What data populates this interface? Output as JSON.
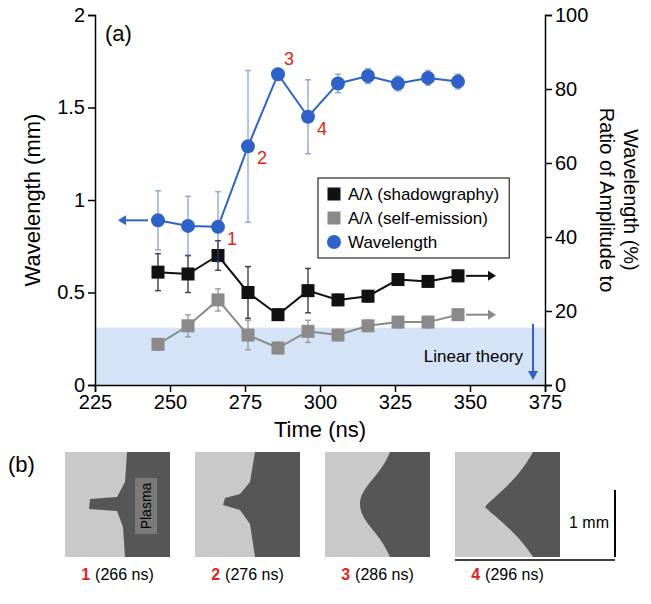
{
  "chart_data": {
    "type": "line",
    "panel_label": "(a)",
    "xlabel": "Time (ns)",
    "ylabel": "Wavelength (mm)",
    "y2label": "Ratio of Amplitude to Wavelength (%)",
    "x": [
      246,
      256,
      266,
      276,
      286,
      296,
      306,
      316,
      326,
      336,
      346
    ],
    "xlim": [
      225,
      375
    ],
    "xticks": [
      225,
      250,
      275,
      300,
      325,
      350,
      375
    ],
    "ylim": [
      0,
      2
    ],
    "yticks": [
      0,
      0.5,
      1,
      1.5,
      2
    ],
    "y2lim": [
      0,
      100
    ],
    "y2ticks": [
      0,
      20,
      40,
      60,
      80,
      100
    ],
    "legend": "right",
    "grid": false,
    "series": [
      {
        "name": "A/λ (shadowgraphy)",
        "color": "#111111",
        "marker": "square",
        "axis": "y2",
        "values": [
          30.5,
          30,
          35,
          25,
          19,
          25.5,
          23,
          24,
          28.5,
          28,
          29.5
        ],
        "errors": [
          5,
          5,
          4,
          7,
          1.5,
          6,
          1.5,
          1.5,
          1.5,
          1.5,
          1.5
        ]
      },
      {
        "name": "A/λ (self-emission)",
        "color": "#8a8a8a",
        "marker": "square",
        "axis": "y2",
        "values": [
          11,
          16,
          23,
          13.5,
          10,
          14.5,
          13.5,
          16,
          17,
          17,
          19
        ],
        "errors": [
          1.5,
          3,
          3,
          4,
          1.5,
          3,
          1.5,
          1.5,
          1.5,
          1.5,
          1.5
        ]
      },
      {
        "name": "Wavelength",
        "color": "#2f62c8",
        "marker": "circle",
        "values": [
          0.89,
          0.86,
          0.855,
          1.29,
          1.68,
          1.45,
          1.63,
          1.67,
          1.63,
          1.66,
          1.64
        ],
        "errors": [
          0.16,
          0.16,
          0.19,
          0.41,
          0.03,
          0.2,
          0.05,
          0.04,
          0.04,
          0.04,
          0.04
        ],
        "point_labels": [
          null,
          null,
          "1",
          "2",
          "3",
          "4",
          null,
          null,
          null,
          null,
          null
        ]
      }
    ],
    "bands": [
      {
        "label": "Linear theory",
        "axis": "y2",
        "from": 0,
        "to": 15.5
      }
    ]
  },
  "panel_b": {
    "panel_label": "(b)",
    "plasma_label": "Plasma",
    "scale_bar": "1 mm",
    "images": [
      {
        "number": "1",
        "caption": "(266 ns)"
      },
      {
        "number": "2",
        "caption": "(276 ns)"
      },
      {
        "number": "3",
        "caption": "(286 ns)"
      },
      {
        "number": "4",
        "caption": "(296 ns)"
      }
    ]
  }
}
